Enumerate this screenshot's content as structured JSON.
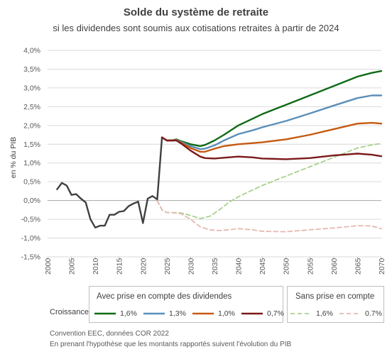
{
  "title": "Solde du système de retraite",
  "subtitle": "si les dividendes sont soumis aux cotisations retraites à partir de 2024",
  "ylabel": "en % du PIB",
  "legend": {
    "row_label": "Croissance",
    "group_with": "Avec prise en compte des dividendes",
    "group_without": "Sans prise en compte",
    "items_with": [
      "1,6%",
      "1,3%",
      "1,0%",
      "0,7%"
    ],
    "items_without": [
      "1,6%",
      "0.7%"
    ]
  },
  "notes": [
    "Convention EEC, données COR 2022",
    "En prenant l'hypothèse que les montants rapportés suivent l'évolution du PIB"
  ],
  "colors": {
    "g16": "#0e6b16",
    "g13": "#5b8fb9",
    "g10": "#c55a11",
    "g07": "#7b1a1a",
    "hist": "#404040",
    "d16": "#a9d18e",
    "d07": "#e6b8b0"
  },
  "chart_data": {
    "type": "line",
    "title": "Solde du système de retraite",
    "ylabel": "en % du PIB",
    "xlim": [
      2000,
      2070
    ],
    "ylim": [
      -1.5,
      4.0
    ],
    "x_ticks": [
      "2000",
      "2005",
      "2010",
      "2015",
      "2020",
      "2025",
      "2030",
      "2035",
      "2040",
      "2045",
      "2050",
      "2055",
      "2060",
      "2065",
      "2070"
    ],
    "y_ticks": [
      "-1,5%",
      "-1,0%",
      "-0,5%",
      "0,0%",
      "0,5%",
      "1,0%",
      "1,5%",
      "2,0%",
      "2,5%",
      "3,0%",
      "3,5%",
      "4,0%"
    ],
    "grid": "horizontal",
    "legend_position": "bottom",
    "series": [
      {
        "key": "hist",
        "style": "solid",
        "x": [
          2002,
          2003,
          2004,
          2005,
          2006,
          2007,
          2008,
          2009,
          2010,
          2011,
          2012,
          2013,
          2014,
          2015,
          2016,
          2017,
          2018,
          2019,
          2020,
          2021,
          2022,
          2023,
          2024
        ],
        "y": [
          0.3,
          0.47,
          0.4,
          0.15,
          0.17,
          0.05,
          -0.05,
          -0.5,
          -0.72,
          -0.67,
          -0.67,
          -0.38,
          -0.38,
          -0.3,
          -0.28,
          -0.15,
          -0.08,
          -0.03,
          -0.6,
          0.05,
          0.12,
          0.03,
          1.68
        ]
      },
      {
        "key": "g16",
        "name": "1,6%",
        "style": "solid",
        "x": [
          2024,
          2025,
          2026,
          2027,
          2028,
          2030,
          2032,
          2033,
          2035,
          2037,
          2040,
          2043,
          2045,
          2050,
          2055,
          2060,
          2065,
          2068,
          2070
        ],
        "y": [
          1.68,
          1.6,
          1.6,
          1.63,
          1.58,
          1.5,
          1.45,
          1.48,
          1.6,
          1.75,
          2.0,
          2.18,
          2.3,
          2.55,
          2.8,
          3.05,
          3.3,
          3.4,
          3.45
        ]
      },
      {
        "key": "g13",
        "name": "1,3%",
        "style": "solid",
        "x": [
          2024,
          2025,
          2026,
          2027,
          2028,
          2030,
          2032,
          2033,
          2035,
          2037,
          2040,
          2043,
          2045,
          2050,
          2055,
          2060,
          2065,
          2068,
          2070
        ],
        "y": [
          1.68,
          1.6,
          1.6,
          1.62,
          1.56,
          1.45,
          1.37,
          1.38,
          1.47,
          1.6,
          1.77,
          1.87,
          1.95,
          2.12,
          2.32,
          2.53,
          2.73,
          2.8,
          2.8
        ]
      },
      {
        "key": "g10",
        "name": "1,0%",
        "style": "solid",
        "x": [
          2024,
          2025,
          2026,
          2027,
          2028,
          2030,
          2032,
          2033,
          2035,
          2037,
          2040,
          2043,
          2045,
          2050,
          2055,
          2060,
          2065,
          2068,
          2070
        ],
        "y": [
          1.68,
          1.6,
          1.6,
          1.61,
          1.54,
          1.4,
          1.3,
          1.3,
          1.38,
          1.45,
          1.5,
          1.53,
          1.55,
          1.63,
          1.75,
          1.9,
          2.05,
          2.07,
          2.05
        ]
      },
      {
        "key": "g07",
        "name": "0,7%",
        "style": "solid",
        "x": [
          2024,
          2025,
          2026,
          2027,
          2028,
          2030,
          2032,
          2033,
          2035,
          2037,
          2040,
          2043,
          2045,
          2050,
          2055,
          2060,
          2063,
          2065,
          2068,
          2070
        ],
        "y": [
          1.68,
          1.6,
          1.6,
          1.6,
          1.52,
          1.33,
          1.17,
          1.13,
          1.12,
          1.14,
          1.17,
          1.15,
          1.12,
          1.1,
          1.13,
          1.2,
          1.23,
          1.25,
          1.22,
          1.18
        ]
      },
      {
        "key": "d16",
        "name": "1,6%",
        "style": "dashed",
        "x": [
          2023,
          2024,
          2025,
          2026,
          2028,
          2030,
          2032,
          2034,
          2036,
          2038,
          2040,
          2045,
          2050,
          2055,
          2060,
          2065,
          2068,
          2070
        ],
        "y": [
          0.0,
          -0.25,
          -0.32,
          -0.32,
          -0.33,
          -0.4,
          -0.48,
          -0.42,
          -0.25,
          -0.05,
          0.1,
          0.4,
          0.65,
          0.9,
          1.15,
          1.4,
          1.48,
          1.52
        ]
      },
      {
        "key": "d07",
        "name": "0.7%",
        "style": "dashed",
        "x": [
          2023,
          2024,
          2025,
          2026,
          2028,
          2030,
          2032,
          2034,
          2036,
          2038,
          2040,
          2043,
          2045,
          2050,
          2055,
          2060,
          2065,
          2068,
          2070
        ],
        "y": [
          0.0,
          -0.25,
          -0.32,
          -0.32,
          -0.35,
          -0.5,
          -0.7,
          -0.78,
          -0.8,
          -0.78,
          -0.75,
          -0.78,
          -0.82,
          -0.83,
          -0.78,
          -0.73,
          -0.67,
          -0.68,
          -0.75
        ]
      }
    ]
  }
}
